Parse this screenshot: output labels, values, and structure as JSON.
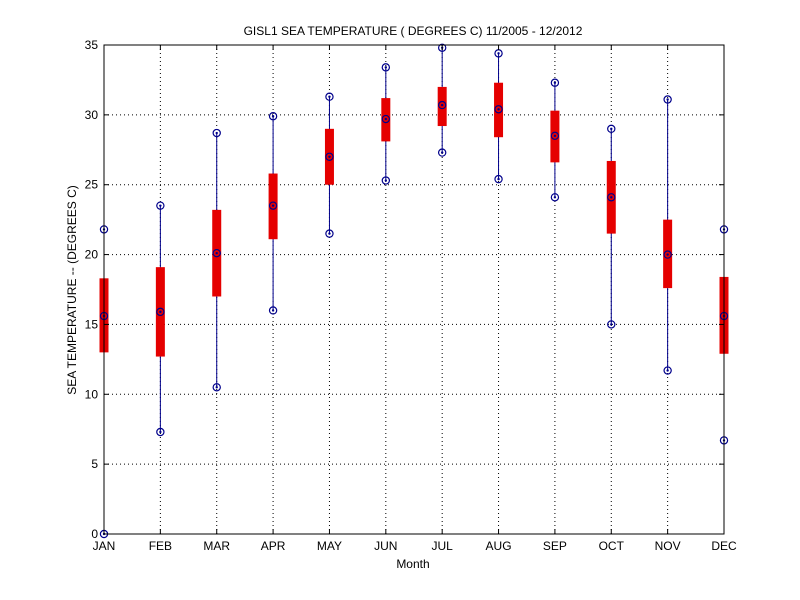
{
  "chart_data": {
    "type": "boxplot",
    "title": "GISL1  SEA TEMPERATURE ( DEGREES C) 11/2005 - 12/2012",
    "xlabel": "Month",
    "ylabel": "SEA TEMPERATURE -- (DEGREES C)",
    "ylim": [
      0,
      35
    ],
    "yticks": [
      0,
      5,
      10,
      15,
      20,
      25,
      30,
      35
    ],
    "grid": true,
    "categories": [
      "JAN",
      "FEB",
      "MAR",
      "APR",
      "MAY",
      "JUN",
      "JUL",
      "AUG",
      "SEP",
      "OCT",
      "NOV",
      "DEC"
    ],
    "series": [
      {
        "min": [
          0.0,
          7.3,
          10.5,
          16.0,
          21.5,
          25.3,
          27.3,
          25.4,
          24.1,
          15.0,
          11.7,
          6.7
        ],
        "q1": [
          13.0,
          12.7,
          17.0,
          21.1,
          25.0,
          28.1,
          29.2,
          28.4,
          26.6,
          21.5,
          17.6,
          12.9
        ],
        "median": [
          15.6,
          15.9,
          20.1,
          23.5,
          27.0,
          29.7,
          30.7,
          30.4,
          28.5,
          24.1,
          20.0,
          15.6
        ],
        "q3": [
          18.3,
          19.1,
          23.2,
          25.8,
          29.0,
          31.2,
          32.0,
          32.3,
          30.3,
          26.7,
          22.5,
          18.4
        ],
        "max": [
          21.8,
          23.5,
          28.7,
          29.9,
          31.3,
          33.4,
          34.8,
          34.4,
          32.3,
          29.0,
          31.1,
          21.8
        ]
      }
    ],
    "colors": {
      "box": "#e50000",
      "whisker": "#00008b",
      "marker": "#00008b",
      "grid": "#000000"
    }
  }
}
